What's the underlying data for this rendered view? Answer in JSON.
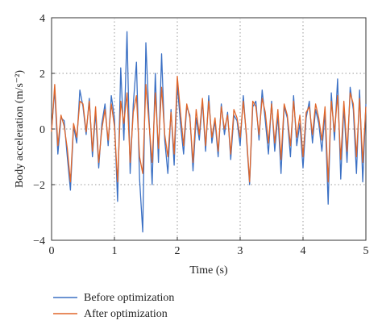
{
  "chart_data": {
    "type": "line",
    "xlabel": "Time (s)",
    "ylabel": "Body acceleration (m/s⁻²)",
    "xlim": [
      0,
      5
    ],
    "ylim": [
      -4,
      4
    ],
    "xticks": [
      0,
      1,
      2,
      3,
      4,
      5
    ],
    "yticks": [
      -4,
      -2,
      0,
      2,
      4
    ],
    "grid": true,
    "legend_position": "bottom-left",
    "series": [
      {
        "name": "Before optimization",
        "color": "#3b70c4",
        "x": [
          0.0,
          0.05,
          0.1,
          0.15,
          0.2,
          0.25,
          0.3,
          0.35,
          0.4,
          0.45,
          0.5,
          0.55,
          0.6,
          0.65,
          0.7,
          0.75,
          0.8,
          0.85,
          0.9,
          0.95,
          1.0,
          1.05,
          1.1,
          1.15,
          1.2,
          1.25,
          1.3,
          1.35,
          1.4,
          1.45,
          1.5,
          1.55,
          1.6,
          1.65,
          1.7,
          1.75,
          1.8,
          1.85,
          1.9,
          1.95,
          2.0,
          2.05,
          2.1,
          2.15,
          2.2,
          2.25,
          2.3,
          2.35,
          2.4,
          2.45,
          2.5,
          2.55,
          2.6,
          2.65,
          2.7,
          2.75,
          2.8,
          2.85,
          2.9,
          2.95,
          3.0,
          3.05,
          3.1,
          3.15,
          3.2,
          3.25,
          3.3,
          3.35,
          3.4,
          3.45,
          3.5,
          3.55,
          3.6,
          3.65,
          3.7,
          3.75,
          3.8,
          3.85,
          3.9,
          3.95,
          4.0,
          4.05,
          4.1,
          4.15,
          4.2,
          4.25,
          4.3,
          4.35,
          4.4,
          4.45,
          4.5,
          4.55,
          4.6,
          4.65,
          4.7,
          4.75,
          4.8,
          4.85,
          4.9,
          4.95,
          5.0
        ],
        "y": [
          0.0,
          1.4,
          -0.9,
          0.4,
          0.3,
          -1.0,
          -2.2,
          0.1,
          -0.5,
          1.4,
          0.8,
          -0.2,
          1.1,
          -1.0,
          0.6,
          -1.4,
          0.2,
          0.9,
          -0.6,
          1.2,
          0.4,
          -2.6,
          2.2,
          -0.4,
          3.5,
          -1.6,
          0.9,
          2.4,
          -1.8,
          -3.7,
          3.1,
          0.4,
          -2.0,
          2.0,
          -1.2,
          2.7,
          -0.4,
          -1.6,
          0.7,
          -1.3,
          1.6,
          0.2,
          -0.9,
          0.8,
          0.5,
          -1.5,
          0.4,
          -0.4,
          1.0,
          -0.8,
          1.2,
          -0.5,
          0.3,
          -1.0,
          0.9,
          -0.2,
          0.6,
          -1.1,
          0.5,
          0.3,
          -0.6,
          1.2,
          -0.3,
          -2.0,
          0.8,
          1.0,
          -0.4,
          1.4,
          0.3,
          -0.9,
          1.0,
          -0.8,
          0.5,
          -1.6,
          0.8,
          0.4,
          -1.0,
          1.2,
          -0.6,
          0.2,
          -1.4,
          0.4,
          1.0,
          -0.5,
          0.7,
          0.2,
          -0.8,
          0.6,
          -2.7,
          1.3,
          -0.4,
          1.8,
          -1.8,
          0.8,
          -1.2,
          1.5,
          0.7,
          -1.6,
          1.4,
          -1.9,
          0.9
        ]
      },
      {
        "name": "After optimization",
        "color": "#e0662a",
        "x": [
          0.0,
          0.05,
          0.1,
          0.15,
          0.2,
          0.25,
          0.3,
          0.35,
          0.4,
          0.45,
          0.5,
          0.55,
          0.6,
          0.65,
          0.7,
          0.75,
          0.8,
          0.85,
          0.9,
          0.95,
          1.0,
          1.05,
          1.1,
          1.15,
          1.2,
          1.25,
          1.3,
          1.35,
          1.4,
          1.45,
          1.5,
          1.55,
          1.6,
          1.65,
          1.7,
          1.75,
          1.8,
          1.85,
          1.9,
          1.95,
          2.0,
          2.05,
          2.1,
          2.15,
          2.2,
          2.25,
          2.3,
          2.35,
          2.4,
          2.45,
          2.5,
          2.55,
          2.6,
          2.65,
          2.7,
          2.75,
          2.8,
          2.85,
          2.9,
          2.95,
          3.0,
          3.05,
          3.1,
          3.15,
          3.2,
          3.25,
          3.3,
          3.35,
          3.4,
          3.45,
          3.5,
          3.55,
          3.6,
          3.65,
          3.7,
          3.75,
          3.8,
          3.85,
          3.9,
          3.95,
          4.0,
          4.05,
          4.1,
          4.15,
          4.2,
          4.25,
          4.3,
          4.35,
          4.4,
          4.45,
          4.5,
          4.55,
          4.6,
          4.65,
          4.7,
          4.75,
          4.8,
          4.85,
          4.9,
          4.95,
          5.0
        ],
        "y": [
          -0.1,
          1.6,
          -0.6,
          0.5,
          0.1,
          -0.7,
          -1.9,
          0.2,
          -0.3,
          1.0,
          0.9,
          -0.1,
          1.0,
          -0.8,
          0.8,
          -1.2,
          0.0,
          0.7,
          -0.4,
          0.9,
          0.1,
          -1.9,
          1.0,
          0.2,
          1.3,
          -1.2,
          0.6,
          1.2,
          -1.0,
          -1.6,
          1.6,
          0.2,
          -1.2,
          1.3,
          -0.7,
          1.5,
          -0.2,
          -1.0,
          0.6,
          -0.9,
          1.9,
          0.6,
          -0.6,
          0.9,
          0.4,
          -1.2,
          0.7,
          -0.2,
          1.1,
          -0.6,
          1.0,
          -0.3,
          0.4,
          -0.8,
          0.8,
          0.0,
          0.5,
          -0.9,
          0.7,
          0.4,
          -0.3,
          1.0,
          -0.2,
          -1.9,
          1.0,
          0.8,
          -0.2,
          1.1,
          0.6,
          -0.5,
          0.9,
          -0.5,
          0.7,
          -1.1,
          0.9,
          0.5,
          -0.6,
          1.0,
          -0.3,
          0.5,
          -1.0,
          0.6,
          0.8,
          -0.2,
          0.9,
          0.4,
          -0.4,
          0.8,
          -1.9,
          1.0,
          -0.1,
          1.2,
          -1.1,
          1.0,
          -0.8,
          1.3,
          0.9,
          -1.0,
          1.1,
          -1.2,
          0.8
        ]
      }
    ]
  }
}
